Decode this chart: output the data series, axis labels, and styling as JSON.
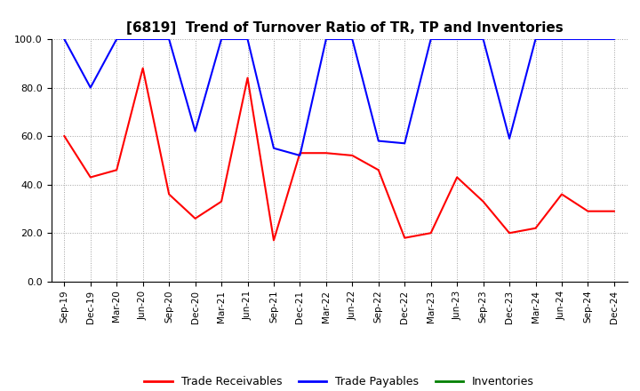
{
  "title": "[6819]  Trend of Turnover Ratio of TR, TP and Inventories",
  "xlabels": [
    "Sep-19",
    "Dec-19",
    "Mar-20",
    "Jun-20",
    "Sep-20",
    "Dec-20",
    "Mar-21",
    "Jun-21",
    "Sep-21",
    "Dec-21",
    "Mar-22",
    "Jun-22",
    "Sep-22",
    "Dec-22",
    "Mar-23",
    "Jun-23",
    "Sep-23",
    "Dec-23",
    "Mar-24",
    "Jun-24",
    "Sep-24",
    "Dec-24"
  ],
  "ylim": [
    0,
    100
  ],
  "yticks": [
    0.0,
    20.0,
    40.0,
    60.0,
    80.0,
    100.0
  ],
  "trade_receivables": [
    60,
    43,
    46,
    88,
    36,
    26,
    33,
    84,
    17,
    53,
    53,
    52,
    46,
    18,
    20,
    43,
    33,
    20,
    22,
    36,
    29,
    29
  ],
  "trade_payables": [
    100,
    80,
    100,
    100,
    100,
    62,
    100,
    100,
    55,
    52,
    100,
    100,
    58,
    57,
    100,
    100,
    100,
    59,
    100,
    100,
    100,
    100
  ],
  "inventories": [
    null,
    null,
    null,
    null,
    null,
    null,
    null,
    null,
    null,
    null,
    null,
    null,
    null,
    null,
    null,
    null,
    null,
    null,
    null,
    null,
    null,
    null
  ],
  "tr_color": "#ff0000",
  "tp_color": "#0000ff",
  "inv_color": "#008000",
  "background_color": "#ffffff",
  "grid_color": "#a0a0a0"
}
